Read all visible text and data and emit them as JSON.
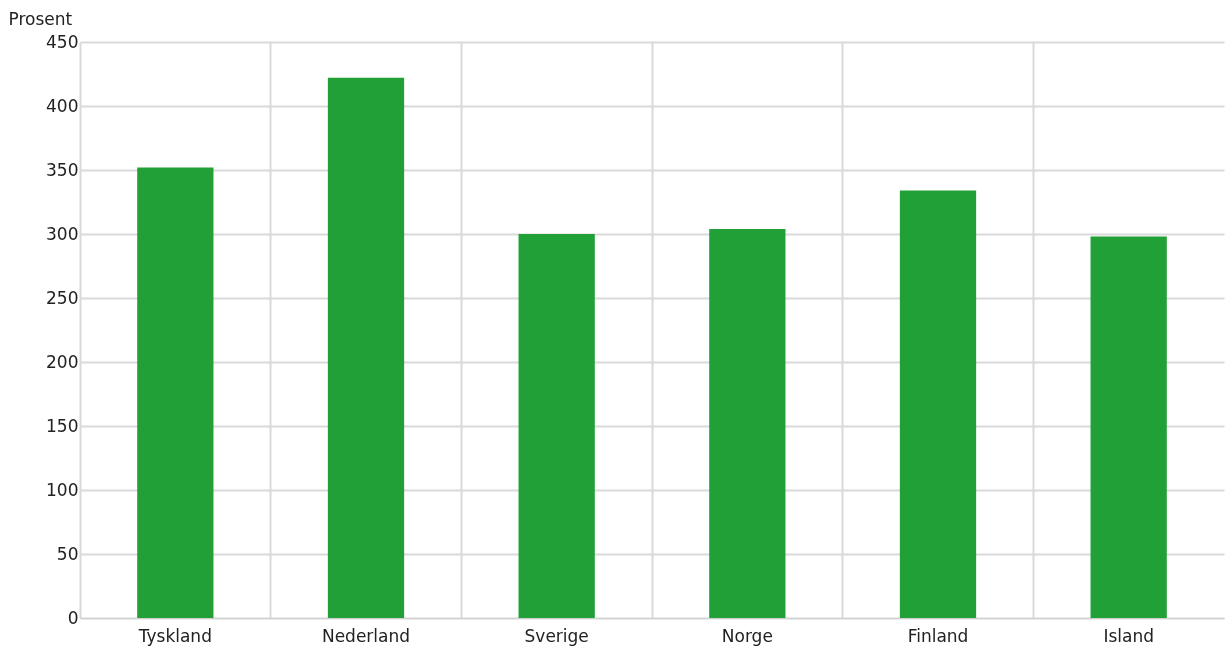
{
  "chart_data": {
    "type": "bar",
    "ylabel": "Prosent",
    "categories": [
      "Tyskland",
      "Nederland",
      "Sverige",
      "Norge",
      "Finland",
      "Island"
    ],
    "values": [
      352,
      422,
      300,
      304,
      334,
      298
    ],
    "color": "#21a038",
    "ylim": [
      0,
      450
    ],
    "yticks": [
      0,
      50,
      100,
      150,
      200,
      250,
      300,
      350,
      400,
      450
    ],
    "grid": true
  }
}
